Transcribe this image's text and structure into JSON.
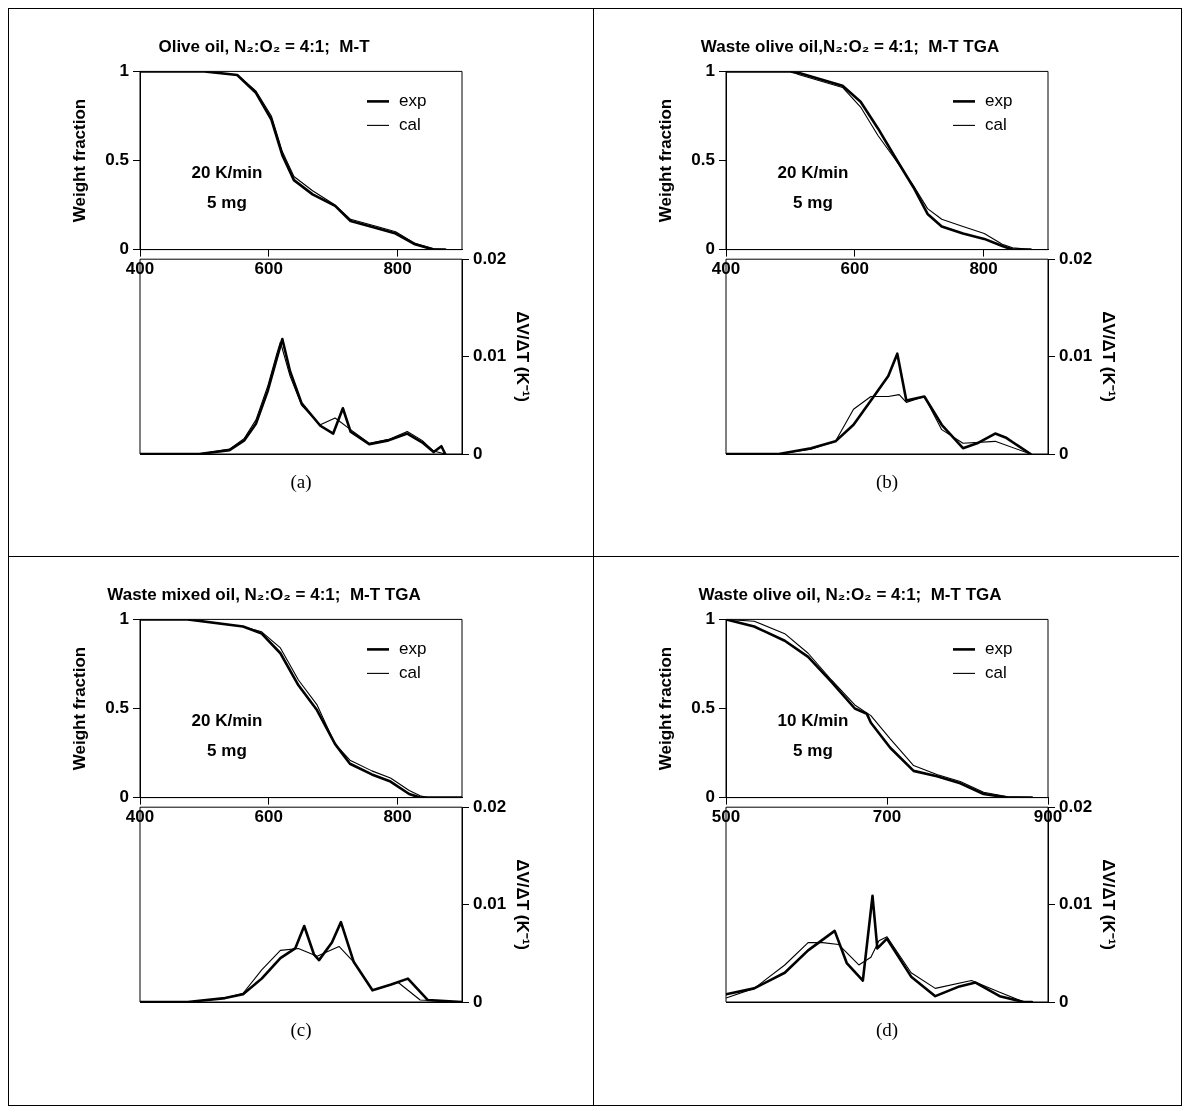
{
  "chart_data": [
    {
      "type": "line",
      "title": "Olive oil, N₂:O₂ = 4:1;  M-T",
      "ylabel": "Weight fraction",
      "xlim": [
        400,
        900
      ],
      "xticks": [
        400,
        600,
        800
      ],
      "ylim": [
        0,
        1
      ],
      "yticks": [
        0,
        0.5,
        1
      ],
      "legend": "top right",
      "annotations": [
        "20 K/min",
        "5 mg"
      ],
      "series": [
        {
          "name": "exp",
          "color": "#000000",
          "x": [
            400,
            500,
            551,
            580,
            604,
            621,
            639,
            668,
            703,
            727,
            768,
            797,
            827,
            856,
            874
          ],
          "values": [
            1,
            1,
            0.98,
            0.88,
            0.73,
            0.53,
            0.39,
            0.31,
            0.245,
            0.16,
            0.12,
            0.09,
            0.03,
            0,
            0
          ]
        },
        {
          "name": "cal",
          "color": "#000000",
          "x": [
            400,
            500,
            551,
            580,
            604,
            621,
            639,
            668,
            703,
            727,
            768,
            797,
            827,
            856,
            874
          ],
          "values": [
            1,
            1,
            0.98,
            0.89,
            0.75,
            0.55,
            0.41,
            0.33,
            0.25,
            0.17,
            0.13,
            0.1,
            0.035,
            0.005,
            0
          ]
        }
      ]
    },
    {
      "type": "line",
      "y2label": "ΔV/ΔT (K⁻¹)",
      "xlim": [
        400,
        900
      ],
      "y2lim": [
        0,
        0.02
      ],
      "y2ticks": [
        0,
        0.01,
        0.02
      ],
      "tick_labels": "y",
      "annotations": [
        "(a)"
      ],
      "series": [
        {
          "color": "#000000",
          "axis": "y2",
          "x": [
            400,
            492,
            539,
            562,
            580,
            598,
            612,
            621,
            633,
            651,
            680,
            700,
            715,
            727,
            756,
            786,
            815,
            838,
            856,
            868,
            874
          ],
          "values": [
            0,
            0,
            0.0004,
            0.0014,
            0.0031,
            0.0064,
            0.0097,
            0.0118,
            0.0085,
            0.0052,
            0.0029,
            0.0021,
            0.0047,
            0.0023,
            0.001,
            0.0014,
            0.0021,
            0.0012,
            0.0002,
            0.0008,
            0
          ]
        },
        {
          "color": "#000000",
          "axis": "y2",
          "x": [
            400,
            492,
            539,
            562,
            580,
            598,
            612,
            618,
            633,
            651,
            680,
            703,
            727,
            756,
            786,
            815,
            838,
            856,
            874
          ],
          "values": [
            0,
            0,
            0.0005,
            0.0016,
            0.0035,
            0.0069,
            0.0102,
            0.0115,
            0.008,
            0.005,
            0.003,
            0.0037,
            0.0025,
            0.0011,
            0.0015,
            0.0023,
            0.0014,
            0.0003,
            0
          ]
        }
      ]
    },
    {
      "type": "line",
      "title": "Waste olive oil,N₂:O₂ = 4:1;  M-T TGA",
      "ylabel": "Weight fraction",
      "xlim": [
        400,
        900
      ],
      "xticks": [
        400,
        600,
        800
      ],
      "ylim": [
        0,
        1
      ],
      "yticks": [
        0,
        0.5,
        1
      ],
      "legend": "top right",
      "annotations": [
        "20 K/min",
        "5 mg"
      ],
      "series": [
        {
          "name": "exp",
          "color": "#000000",
          "x": [
            400,
            500,
            515,
            581,
            609,
            636,
            664,
            691,
            713,
            735,
            768,
            801,
            829,
            845,
            873
          ],
          "values": [
            1,
            1,
            0.99,
            0.92,
            0.83,
            0.68,
            0.51,
            0.35,
            0.2,
            0.13,
            0.09,
            0.06,
            0.02,
            0,
            0
          ]
        },
        {
          "name": "cal",
          "color": "#000000",
          "x": [
            400,
            500,
            515,
            581,
            609,
            636,
            664,
            691,
            713,
            735,
            768,
            801,
            829,
            845,
            873
          ],
          "values": [
            1,
            1,
            0.98,
            0.91,
            0.8,
            0.64,
            0.5,
            0.36,
            0.23,
            0.17,
            0.13,
            0.09,
            0.03,
            0.01,
            0
          ]
        }
      ]
    },
    {
      "type": "line",
      "y2label": "ΔV/ΔT (K⁻¹)",
      "xlim": [
        400,
        900
      ],
      "y2lim": [
        0,
        0.02
      ],
      "y2ticks": [
        0,
        0.01,
        0.02
      ],
      "tick_labels": "y",
      "annotations": [
        "(b)"
      ],
      "series": [
        {
          "color": "#000000",
          "axis": "y2",
          "x": [
            400,
            482,
            532,
            570,
            598,
            625,
            652,
            666,
            680,
            708,
            735,
            768,
            790,
            818,
            834,
            873
          ],
          "values": [
            0,
            0,
            0.0006,
            0.0013,
            0.003,
            0.0055,
            0.008,
            0.0103,
            0.0055,
            0.0059,
            0.003,
            0.0006,
            0.0011,
            0.0021,
            0.0017,
            0
          ]
        },
        {
          "color": "#000000",
          "axis": "y2",
          "x": [
            400,
            482,
            532,
            570,
            598,
            625,
            652,
            669,
            680,
            708,
            735,
            768,
            818,
            873
          ],
          "values": [
            0,
            0,
            0.0005,
            0.0013,
            0.0046,
            0.0059,
            0.0059,
            0.0061,
            0.0053,
            0.0059,
            0.0025,
            0.0011,
            0.0013,
            0
          ]
        }
      ]
    },
    {
      "type": "line",
      "title": "Waste mixed oil, N₂:O₂ = 4:1;  M-T TGA",
      "ylabel": "Weight fraction",
      "xlim": [
        400,
        900
      ],
      "xticks": [
        400,
        600,
        800
      ],
      "ylim": [
        0,
        1
      ],
      "yticks": [
        0,
        0.5,
        1
      ],
      "legend": "top right",
      "annotations": [
        "20 K/min",
        "5 mg"
      ],
      "series": [
        {
          "name": "exp",
          "color": "#000000",
          "x": [
            400,
            474,
            560,
            589,
            618,
            646,
            675,
            703,
            726,
            760,
            789,
            818,
            835,
            900
          ],
          "values": [
            1,
            1,
            0.96,
            0.92,
            0.81,
            0.63,
            0.49,
            0.3,
            0.19,
            0.13,
            0.09,
            0.02,
            0,
            0
          ]
        },
        {
          "name": "cal",
          "color": "#000000",
          "x": [
            400,
            474,
            560,
            589,
            618,
            646,
            675,
            703,
            726,
            760,
            789,
            818,
            835,
            847,
            900
          ],
          "values": [
            1,
            1,
            0.96,
            0.93,
            0.84,
            0.66,
            0.52,
            0.3,
            0.21,
            0.15,
            0.11,
            0.04,
            0.01,
            0,
            0
          ]
        }
      ]
    },
    {
      "type": "line",
      "y2label": "ΔV/ΔT (K⁻¹)",
      "xlim": [
        400,
        900
      ],
      "y2lim": [
        0,
        0.02
      ],
      "y2ticks": [
        0,
        0.01,
        0.02
      ],
      "tick_labels": "y",
      "annotations": [
        "(c)"
      ],
      "series": [
        {
          "color": "#000000",
          "axis": "y2",
          "x": [
            400,
            474,
            532,
            560,
            589,
            618,
            641,
            655,
            670,
            678,
            698,
            712,
            732,
            761,
            790,
            816,
            847,
            900
          ],
          "values": [
            0,
            0,
            0.0004,
            0.0008,
            0.0024,
            0.0045,
            0.0055,
            0.0078,
            0.0049,
            0.0043,
            0.0061,
            0.0082,
            0.0041,
            0.0012,
            0.0018,
            0.0024,
            0.0002,
            0
          ]
        },
        {
          "color": "#000000",
          "axis": "y2",
          "x": [
            400,
            474,
            532,
            560,
            589,
            618,
            646,
            675,
            709,
            732,
            761,
            801,
            835,
            900
          ],
          "values": [
            0,
            0,
            0.0004,
            0.0009,
            0.0033,
            0.0053,
            0.0055,
            0.0047,
            0.0057,
            0.0041,
            0.0012,
            0.002,
            0.0002,
            0
          ]
        }
      ]
    },
    {
      "type": "line",
      "title": "Waste olive oil, N₂:O₂ = 4:1;  M-T TGA",
      "ylabel": "Weight fraction",
      "xlim": [
        500,
        900
      ],
      "xticks": [
        500,
        700,
        900
      ],
      "ylim": [
        0,
        1
      ],
      "yticks": [
        0,
        0.5,
        1
      ],
      "legend": "top right",
      "annotations": [
        "10 K/min",
        "5 mg"
      ],
      "series": [
        {
          "name": "exp",
          "color": "#000000",
          "x": [
            500,
            535,
            573,
            602,
            631,
            660,
            675,
            680,
            704,
            733,
            762,
            791,
            820,
            850,
            880
          ],
          "values": [
            1,
            0.96,
            0.88,
            0.79,
            0.65,
            0.5,
            0.47,
            0.42,
            0.28,
            0.15,
            0.12,
            0.08,
            0.02,
            0,
            0
          ]
        },
        {
          "name": "cal",
          "color": "#000000",
          "x": [
            500,
            535,
            573,
            602,
            631,
            660,
            680,
            704,
            733,
            762,
            791,
            820,
            850,
            880
          ],
          "values": [
            1,
            0.99,
            0.92,
            0.81,
            0.66,
            0.52,
            0.46,
            0.33,
            0.18,
            0.13,
            0.09,
            0.03,
            0.005,
            0
          ]
        }
      ]
    },
    {
      "type": "line",
      "y2label": "ΔV/ΔT (K⁻¹)",
      "xlim": [
        500,
        900
      ],
      "y2lim": [
        0,
        0.02
      ],
      "y2ticks": [
        0,
        0.01,
        0.02
      ],
      "tick_labels": "y",
      "annotations": [
        "(d)"
      ],
      "series": [
        {
          "color": "#000000",
          "axis": "y2",
          "x": [
            500,
            535,
            573,
            602,
            635,
            650,
            670,
            682,
            688,
            700,
            730,
            760,
            790,
            810,
            840,
            870,
            880
          ],
          "values": [
            0.0008,
            0.0014,
            0.003,
            0.0053,
            0.0073,
            0.004,
            0.0022,
            0.0109,
            0.0055,
            0.0065,
            0.0026,
            0.0006,
            0.0016,
            0.002,
            0.0006,
            0,
            0
          ]
        },
        {
          "color": "#000000",
          "axis": "y2",
          "x": [
            500,
            535,
            573,
            602,
            620,
            640,
            665,
            680,
            690,
            700,
            730,
            760,
            805,
            840,
            870
          ],
          "values": [
            0.0004,
            0.0014,
            0.0038,
            0.0061,
            0.0061,
            0.0059,
            0.0038,
            0.0046,
            0.0063,
            0.0067,
            0.003,
            0.0014,
            0.0022,
            0.001,
            0
          ]
        }
      ]
    }
  ]
}
